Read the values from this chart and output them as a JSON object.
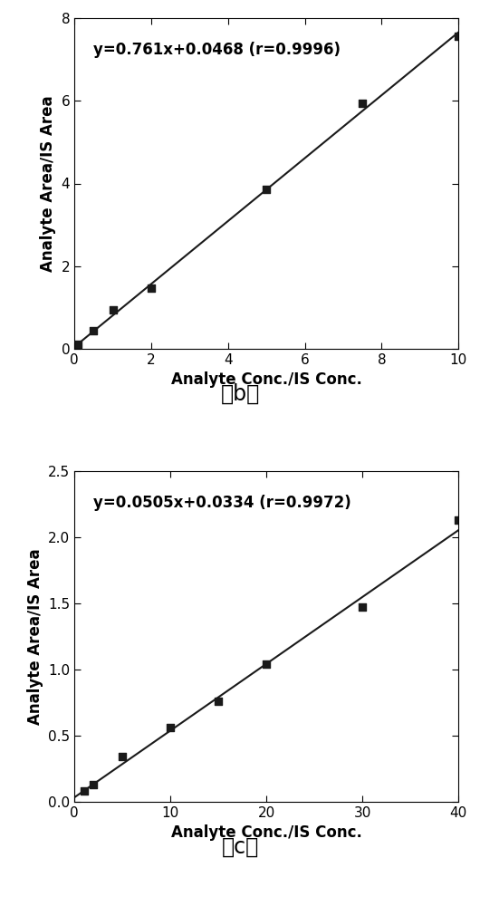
{
  "chart_b": {
    "equation": "y=0.761x+0.0468 (r=0.9996)",
    "slope": 0.761,
    "intercept": 0.0468,
    "x_data": [
      0.1,
      0.5,
      1.0,
      2.0,
      5.0,
      7.5,
      10.0
    ],
    "y_data": [
      0.12,
      0.43,
      0.95,
      1.47,
      3.85,
      5.93,
      7.56
    ],
    "xlabel": "Analyte Conc./IS Conc.",
    "ylabel": "Analyte Area/IS Area",
    "xlim": [
      0,
      10
    ],
    "ylim": [
      0,
      8
    ],
    "xticks": [
      0,
      2,
      4,
      6,
      8,
      10
    ],
    "yticks": [
      0,
      2,
      4,
      6,
      8
    ],
    "label": "（b）"
  },
  "chart_c": {
    "equation": "y=0.0505x+0.0334 (r=0.9972)",
    "slope": 0.0505,
    "intercept": 0.0334,
    "x_data": [
      1.0,
      2.0,
      5.0,
      10.0,
      15.0,
      20.0,
      30.0,
      40.0
    ],
    "y_data": [
      0.083,
      0.13,
      0.34,
      0.56,
      0.76,
      1.04,
      1.47,
      2.13
    ],
    "xlabel": "Analyte Conc./IS Conc.",
    "ylabel": "Analyte Area/IS Area",
    "xlim": [
      0,
      40
    ],
    "ylim": [
      0,
      2.5
    ],
    "xticks": [
      0,
      10,
      20,
      30,
      40
    ],
    "yticks": [
      0.0,
      0.5,
      1.0,
      1.5,
      2.0,
      2.5
    ],
    "label": "（c）"
  },
  "line_color": "#1a1a1a",
  "marker_color": "#1a1a1a",
  "marker_style": "s",
  "marker_size": 6,
  "line_width": 1.5,
  "equation_fontsize": 12,
  "axis_label_fontsize": 12,
  "tick_fontsize": 11,
  "sublabel_fontsize": 17,
  "background_color": "#ffffff"
}
